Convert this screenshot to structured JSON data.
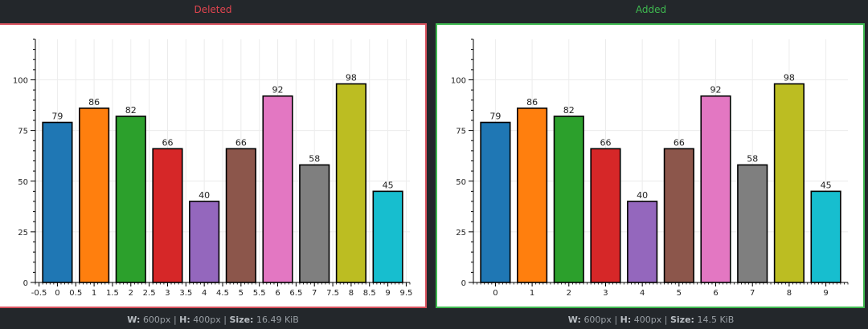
{
  "diff_view": {
    "left": {
      "title": "Deleted",
      "title_color": "#e0454f",
      "border_color": "#d9535f",
      "footer": {
        "w_label": "W:",
        "w_value": "600px",
        "h_label": "H:",
        "h_value": "400px",
        "size_label": "Size:",
        "size_value": "16.49 KiB",
        "sep": "|"
      }
    },
    "right": {
      "title": "Added",
      "title_color": "#3fb950",
      "border_color": "#3fb950",
      "footer": {
        "w_label": "W:",
        "w_value": "600px",
        "h_label": "H:",
        "h_value": "400px",
        "size_label": "Size:",
        "size_value": "14.5 KiB",
        "sep": "|"
      }
    }
  },
  "chart_data": [
    {
      "type": "bar",
      "categories": [
        "0",
        "1",
        "2",
        "3",
        "4",
        "5",
        "6",
        "7",
        "8",
        "9"
      ],
      "values": [
        79,
        86,
        82,
        66,
        40,
        66,
        92,
        58,
        98,
        45
      ],
      "colors": [
        "#1f77b4",
        "#ff7f0e",
        "#2ca02c",
        "#d62728",
        "#9467bd",
        "#8c564b",
        "#e377c2",
        "#7f7f7f",
        "#bcbd22",
        "#17becf"
      ],
      "x_tick_labels": [
        "-0.5",
        "0",
        "0.5",
        "1",
        "1.5",
        "2",
        "2.5",
        "3",
        "3.5",
        "4",
        "4.5",
        "5",
        "5.5",
        "6",
        "6.5",
        "7",
        "7.5",
        "8",
        "8.5",
        "9",
        "9.5"
      ],
      "y_ticks": [
        0,
        25,
        50,
        75,
        100
      ],
      "ylim": [
        0,
        120
      ],
      "xlim": [
        -0.6,
        9.6
      ],
      "grid": true,
      "data_labels": true,
      "title": "",
      "xlabel": "",
      "ylabel": ""
    },
    {
      "type": "bar",
      "categories": [
        "0",
        "1",
        "2",
        "3",
        "4",
        "5",
        "6",
        "7",
        "8",
        "9"
      ],
      "values": [
        79,
        86,
        82,
        66,
        40,
        66,
        92,
        58,
        98,
        45
      ],
      "colors": [
        "#1f77b4",
        "#ff7f0e",
        "#2ca02c",
        "#d62728",
        "#9467bd",
        "#8c564b",
        "#e377c2",
        "#7f7f7f",
        "#bcbd22",
        "#17becf"
      ],
      "x_tick_labels": [
        "0",
        "1",
        "2",
        "3",
        "4",
        "5",
        "6",
        "7",
        "8",
        "9"
      ],
      "y_ticks": [
        0,
        25,
        50,
        75,
        100
      ],
      "ylim": [
        0,
        120
      ],
      "xlim": [
        -0.6,
        9.6
      ],
      "grid": true,
      "data_labels": true,
      "title": "",
      "xlabel": "",
      "ylabel": ""
    }
  ]
}
